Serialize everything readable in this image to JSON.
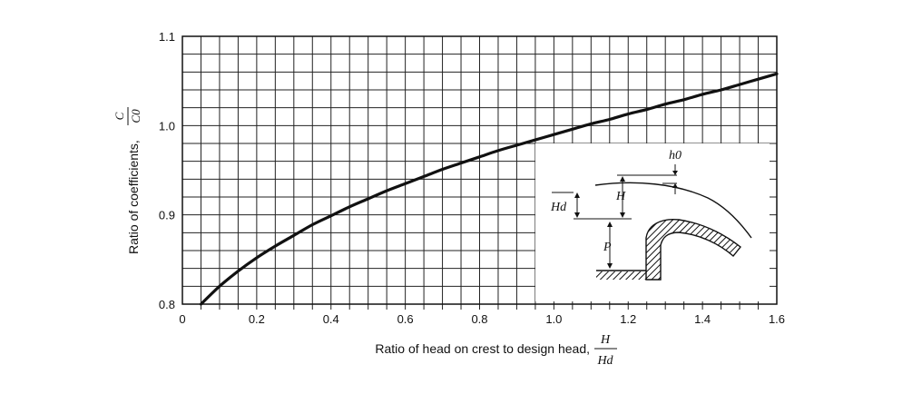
{
  "chart_data": {
    "type": "line",
    "title": "",
    "xlabel": "Ratio of head on crest to design head,",
    "xlabel_fraction": {
      "numerator": "H",
      "denominator": "Hd"
    },
    "ylabel": "Ratio of coefficients,",
    "ylabel_fraction": {
      "numerator": "C",
      "denominator": "C0"
    },
    "xlim": [
      0,
      1.6
    ],
    "ylim": [
      0.8,
      1.1
    ],
    "x_ticks": [
      "0",
      "0.2",
      "0.4",
      "0.6",
      "0.8",
      "1.0",
      "1.2",
      "1.4",
      "1.6"
    ],
    "y_ticks": [
      "0.8",
      "0.9",
      "1.0",
      "1.1"
    ],
    "grid": true,
    "grid_step_x": 0.05,
    "grid_step_y": 0.02,
    "line_color": "#111111",
    "series": [
      {
        "x": [
          0.05,
          0.1,
          0.15,
          0.2,
          0.25,
          0.3,
          0.35,
          0.4,
          0.45,
          0.5,
          0.55,
          0.6,
          0.65,
          0.7,
          0.75,
          0.8,
          0.85,
          0.9,
          0.95,
          1.0,
          1.05,
          1.1,
          1.15,
          1.2,
          1.25,
          1.3,
          1.35,
          1.4,
          1.45,
          1.5,
          1.55,
          1.6
        ],
        "y": [
          0.8,
          0.82,
          0.837,
          0.852,
          0.865,
          0.877,
          0.889,
          0.899,
          0.909,
          0.918,
          0.927,
          0.935,
          0.943,
          0.951,
          0.958,
          0.965,
          0.972,
          0.978,
          0.984,
          0.99,
          0.996,
          1.002,
          1.007,
          1.013,
          1.018,
          1.024,
          1.029,
          1.035,
          1.04,
          1.046,
          1.052,
          1.058
        ]
      }
    ],
    "inset": {
      "labels": {
        "h0": "h0",
        "H": "H",
        "Hd": "Hd",
        "P": "P"
      }
    }
  }
}
